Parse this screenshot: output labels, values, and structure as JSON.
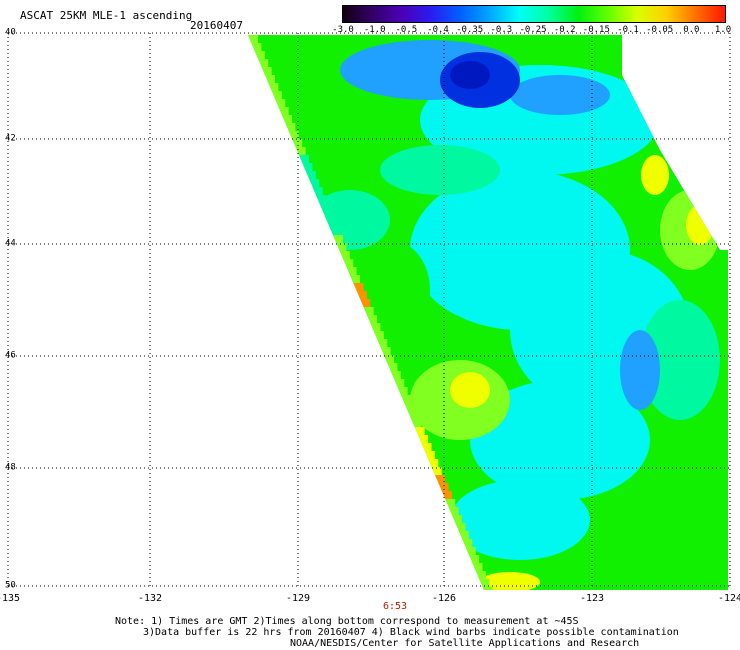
{
  "header": {
    "title": "ASCAT 25KM MLE-1 ascending",
    "date": "20160407"
  },
  "colorbar": {
    "ticks": [
      "-3.0",
      "-1.0",
      "-0.5",
      "-0.4",
      "-0.35",
      "-0.3",
      "-0.25",
      "-0.2",
      "-0.15",
      "-0.1",
      "-0.05",
      "0.0",
      "1.0"
    ],
    "colors": [
      "#120011",
      "#320067",
      "#4b00b7",
      "#2a1cf0",
      "#0060ff",
      "#00a8ff",
      "#00fff8",
      "#00ffa0",
      "#00f010",
      "#60ff00",
      "#d8ff00",
      "#ffd000",
      "#ff7000",
      "#ff1800"
    ]
  },
  "axes": {
    "x_ticks": [
      "-135",
      "-132",
      "-129",
      "-126",
      "-123",
      "-124"
    ],
    "y_ticks": [
      "40",
      "42",
      "44",
      "46",
      "48",
      "50"
    ]
  },
  "swath": {
    "palette": {
      "deep_blue": "#0030e0",
      "blue": "#20a0ff",
      "cyan": "#00f8f0",
      "aqua_green": "#00f8a0",
      "green": "#10f000",
      "light_green": "#80ff20",
      "yellow": "#f0ff00",
      "orange": "#ff9000"
    }
  },
  "time_label": "6:53",
  "notes": [
    "Note: 1) Times are GMT 2)Times along bottom correspond to measurement at ~45S",
    "3)Data buffer is 22 hrs from 20160407 4) Black wind barbs indicate possible contamination",
    "NOAA/NESDIS/Center for Satellite Applications and Research"
  ]
}
